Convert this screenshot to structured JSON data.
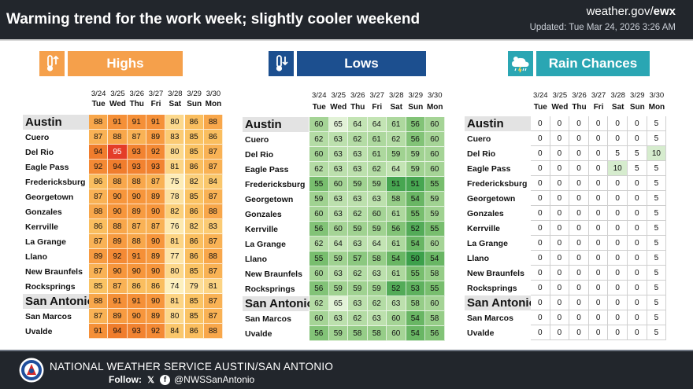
{
  "header": {
    "title": "Warming trend for the work week; slightly cooler weekend",
    "site_prefix": "weather.gov/",
    "site_office": "ewx",
    "updated": "Updated: Tue Mar 24, 2026 3:26 AM"
  },
  "dates": [
    "3/24",
    "3/25",
    "3/26",
    "3/27",
    "3/28",
    "3/29",
    "3/30"
  ],
  "days": [
    "Tue",
    "Wed",
    "Thu",
    "Fri",
    "Sat",
    "Sun",
    "Mon"
  ],
  "cities": [
    "Austin",
    "Cuero",
    "Del Rio",
    "Eagle Pass",
    "Fredericksburg",
    "Georgetown",
    "Gonzales",
    "Kerrville",
    "La Grange",
    "Llano",
    "New Braunfels",
    "Rocksprings",
    "San Antonio",
    "San Marcos",
    "Uvalde"
  ],
  "big_cities": [
    "Austin",
    "San Antonio"
  ],
  "panels": {
    "highs": {
      "label": "Highs",
      "icon": "thermometer-up-icon",
      "color": "#f5a04b",
      "values": [
        [
          88,
          91,
          91,
          91,
          80,
          86,
          88
        ],
        [
          87,
          88,
          87,
          89,
          83,
          85,
          86
        ],
        [
          94,
          95,
          93,
          92,
          80,
          85,
          87
        ],
        [
          92,
          94,
          93,
          93,
          81,
          86,
          87
        ],
        [
          86,
          88,
          88,
          87,
          75,
          82,
          84
        ],
        [
          87,
          90,
          90,
          89,
          78,
          85,
          87
        ],
        [
          88,
          90,
          89,
          90,
          82,
          86,
          88
        ],
        [
          86,
          88,
          87,
          87,
          76,
          82,
          83
        ],
        [
          87,
          89,
          88,
          90,
          81,
          86,
          87
        ],
        [
          89,
          92,
          91,
          89,
          77,
          86,
          88
        ],
        [
          87,
          90,
          90,
          90,
          80,
          85,
          87
        ],
        [
          85,
          87,
          86,
          86,
          74,
          79,
          81
        ],
        [
          88,
          91,
          91,
          90,
          81,
          85,
          87
        ],
        [
          87,
          89,
          90,
          89,
          80,
          85,
          87
        ],
        [
          91,
          94,
          93,
          92,
          84,
          86,
          88
        ]
      ]
    },
    "lows": {
      "label": "Lows",
      "icon": "thermometer-down-icon",
      "color": "#1c4f8f",
      "values": [
        [
          60,
          65,
          64,
          64,
          61,
          56,
          60
        ],
        [
          62,
          63,
          62,
          61,
          62,
          56,
          60
        ],
        [
          60,
          63,
          63,
          61,
          59,
          59,
          60
        ],
        [
          62,
          63,
          63,
          62,
          64,
          59,
          60
        ],
        [
          55,
          60,
          59,
          59,
          51,
          51,
          55
        ],
        [
          59,
          63,
          63,
          63,
          58,
          54,
          59
        ],
        [
          60,
          63,
          62,
          60,
          61,
          55,
          59
        ],
        [
          56,
          60,
          59,
          59,
          56,
          52,
          55
        ],
        [
          62,
          64,
          63,
          64,
          61,
          54,
          60
        ],
        [
          55,
          59,
          57,
          58,
          54,
          50,
          54
        ],
        [
          60,
          63,
          62,
          63,
          61,
          55,
          58
        ],
        [
          56,
          59,
          59,
          59,
          52,
          53,
          55
        ],
        [
          62,
          65,
          63,
          62,
          63,
          58,
          60
        ],
        [
          60,
          63,
          62,
          63,
          60,
          54,
          58
        ],
        [
          56,
          59,
          58,
          58,
          60,
          54,
          56
        ]
      ]
    },
    "rain": {
      "label": "Rain Chances",
      "icon": "thunderstorm-rain-icon",
      "color": "#2aa6b3",
      "values": [
        [
          0,
          0,
          0,
          0,
          0,
          0,
          5
        ],
        [
          0,
          0,
          0,
          0,
          0,
          0,
          5
        ],
        [
          0,
          0,
          0,
          0,
          5,
          5,
          10
        ],
        [
          0,
          0,
          0,
          0,
          10,
          5,
          5
        ],
        [
          0,
          0,
          0,
          0,
          0,
          0,
          5
        ],
        [
          0,
          0,
          0,
          0,
          0,
          0,
          5
        ],
        [
          0,
          0,
          0,
          0,
          0,
          0,
          5
        ],
        [
          0,
          0,
          0,
          0,
          0,
          0,
          5
        ],
        [
          0,
          0,
          0,
          0,
          0,
          0,
          5
        ],
        [
          0,
          0,
          0,
          0,
          0,
          0,
          5
        ],
        [
          0,
          0,
          0,
          0,
          0,
          0,
          5
        ],
        [
          0,
          0,
          0,
          0,
          0,
          0,
          5
        ],
        [
          0,
          0,
          0,
          0,
          0,
          0,
          5
        ],
        [
          0,
          0,
          0,
          0,
          0,
          0,
          5
        ],
        [
          0,
          0,
          0,
          0,
          0,
          0,
          5
        ]
      ]
    }
  },
  "footer": {
    "office": "NATIONAL WEATHER SERVICE AUSTIN/SAN ANTONIO",
    "follow_label": "Follow:",
    "handle": "@NWSSanAntonio",
    "social_icons": [
      "x-icon",
      "facebook-icon"
    ],
    "logo": "nws-logo"
  }
}
